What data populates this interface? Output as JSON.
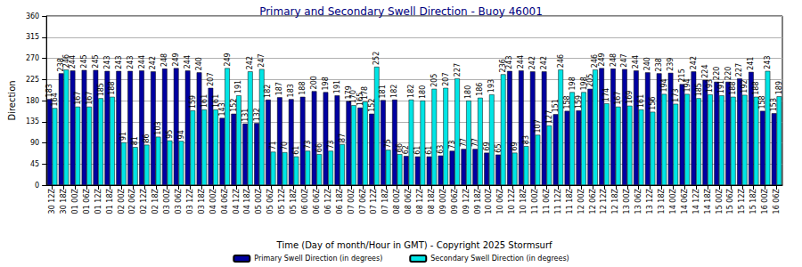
{
  "chart_data": {
    "type": "bar",
    "title": "Primary and Secondary Swell Direction - Buoy 46001",
    "x_label": "Time (Day of month/Hour in GMT) - Copyright 2025 Stormsurf",
    "y_label": "Direction",
    "categories": [
      "30 12Z",
      "30 18Z",
      "01 00Z",
      "01 06Z",
      "01 12Z",
      "01 18Z",
      "02 00Z",
      "02 06Z",
      "02 12Z",
      "02 18Z",
      "03 00Z",
      "03 06Z",
      "03 12Z",
      "03 18Z",
      "04 00Z",
      "04 06Z",
      "04 12Z",
      "04 18Z",
      "05 00Z",
      "05 06Z",
      "05 12Z",
      "05 18Z",
      "06 00Z",
      "06 06Z",
      "06 12Z",
      "06 18Z",
      "07 00Z",
      "07 06Z",
      "07 12Z",
      "07 18Z",
      "08 00Z",
      "08 06Z",
      "08 12Z",
      "08 18Z",
      "09 00Z",
      "09 06Z",
      "09 12Z",
      "09 18Z",
      "10 00Z",
      "10 06Z",
      "10 12Z",
      "10 18Z",
      "11 00Z",
      "11 06Z",
      "11 12Z",
      "11 18Z",
      "12 00Z",
      "12 06Z",
      "12 12Z",
      "12 18Z",
      "13 00Z",
      "13 06Z",
      "13 12Z",
      "13 18Z",
      "14 00Z",
      "14 06Z",
      "14 12Z",
      "14 18Z",
      "15 00Z",
      "15 06Z",
      "15 12Z",
      "15 18Z",
      "16 00Z",
      "16 06Z"
    ],
    "series": [
      {
        "name": "Primary Swell Direction (in degrees)",
        "color": "#0000a0",
        "values": [
          183,
          238,
          244,
          245,
          245,
          243,
          243,
          243,
          244,
          242,
          248,
          249,
          244,
          240,
          207,
          143,
          152,
          131,
          132,
          182,
          187,
          183,
          188,
          200,
          198,
          191,
          179,
          165,
          152,
          181,
          182,
          62,
          61,
          61,
          63,
          73,
          77,
          77,
          69,
          65,
          243,
          244,
          242,
          242,
          151,
          158,
          159,
          205,
          249,
          248,
          247,
          244,
          240,
          238,
          239,
          215,
          242,
          224,
          220,
          220,
          227,
          241,
          158,
          153
        ]
      },
      {
        "name": "Secondary Swell Direction (in degrees)",
        "color": "#00e5e5",
        "values": [
          164,
          246,
          167,
          167,
          185,
          188,
          91,
          81,
          86,
          103,
          95,
          94,
          159,
          161,
          161,
          249,
          191,
          242,
          247,
          71,
          70,
          61,
          73,
          66,
          73,
          87,
          170,
          178,
          252,
          75,
          66,
          182,
          180,
          205,
          207,
          227,
          180,
          186,
          193,
          236,
          69,
          83,
          107,
          127,
          246,
          198,
          198,
          246,
          174,
          167,
          169,
          161,
          156,
          194,
          173,
          194,
          185,
          193,
          191,
          188,
          192,
          188,
          243,
          189
        ]
      }
    ],
    "ylim": [
      0,
      360
    ],
    "yticks": [
      0,
      45,
      90,
      135,
      180,
      225,
      270,
      315,
      360
    ],
    "grid": true,
    "legend": "bottom",
    "data_labels": true
  }
}
